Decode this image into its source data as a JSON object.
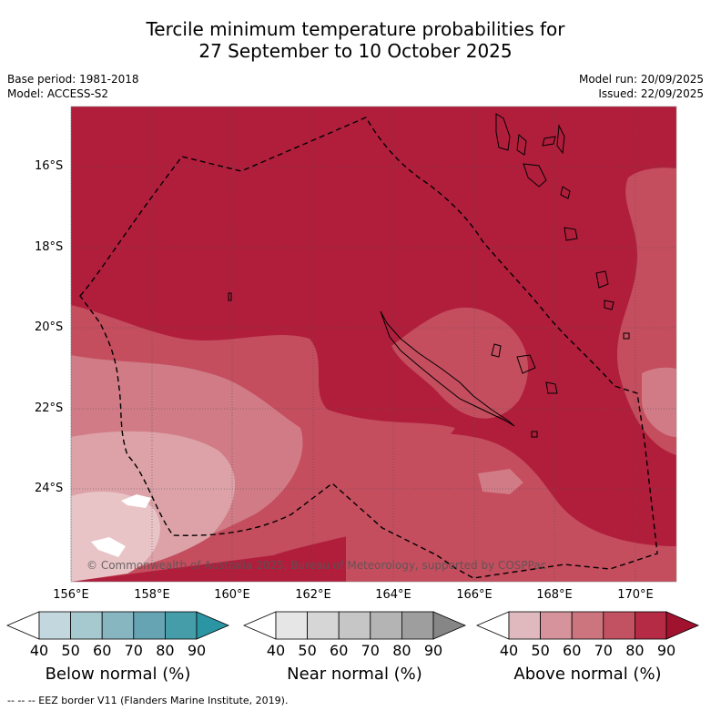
{
  "header": {
    "title_line1": "Tercile minimum temperature probabilities for",
    "title_line2": "27 September to 10 October 2025",
    "base_period": "Base period: 1981-2018",
    "model": "Model: ACCESS-S2",
    "model_run": "Model run: 20/09/2025",
    "issued": "Issued: 22/09/2025"
  },
  "map": {
    "lat_labels": [
      "16°S",
      "18°S",
      "20°S",
      "22°S",
      "24°S"
    ],
    "lon_labels": [
      "156°E",
      "158°E",
      "160°E",
      "162°E",
      "164°E",
      "166°E",
      "168°E",
      "170°E"
    ],
    "copyright": "© Commonwealth of Australia 2025, Bureau of Meteorology, supported by COSPPac",
    "colors": {
      "above_80_90": "#b01e3c",
      "above_70_80": "#c44d5e",
      "above_60_70": "#d07b85",
      "above_50_60": "#dca2a8",
      "above_40_50": "#e8c4c7"
    }
  },
  "colorbars": [
    {
      "title": "Below normal (%)",
      "ticks": [
        "40",
        "50",
        "60",
        "70",
        "80",
        "90"
      ],
      "colors": [
        "#c3d7de",
        "#a6c8cf",
        "#87b6c1",
        "#66a4b4",
        "#449da9",
        "#2c95a4"
      ]
    },
    {
      "title": "Near normal (%)",
      "ticks": [
        "40",
        "50",
        "60",
        "70",
        "80",
        "90"
      ],
      "colors": [
        "#e6e6e6",
        "#d6d6d6",
        "#c6c6c6",
        "#b4b4b4",
        "#9e9e9e",
        "#868686"
      ]
    },
    {
      "title": "Above normal (%)",
      "ticks": [
        "40",
        "50",
        "60",
        "70",
        "80",
        "90"
      ],
      "colors": [
        "#e0b9bf",
        "#d6939b",
        "#cc757f",
        "#c25262",
        "#b52a44",
        "#a0122e"
      ]
    }
  ],
  "footer": {
    "legend": "--  --  -- EEZ border V11 (Flanders Marine Institute, 2019)."
  }
}
